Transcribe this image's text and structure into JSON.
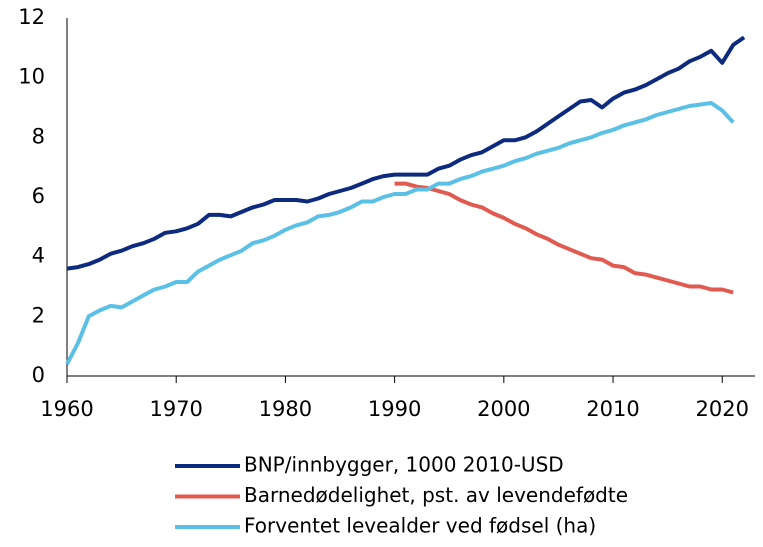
{
  "chart_data": {
    "type": "line",
    "x": [
      1960,
      1961,
      1962,
      1963,
      1964,
      1965,
      1966,
      1967,
      1968,
      1969,
      1970,
      1971,
      1972,
      1973,
      1974,
      1975,
      1976,
      1977,
      1978,
      1979,
      1980,
      1981,
      1982,
      1983,
      1984,
      1985,
      1986,
      1987,
      1988,
      1989,
      1990,
      1991,
      1992,
      1993,
      1994,
      1995,
      1996,
      1997,
      1998,
      1999,
      2000,
      2001,
      2002,
      2003,
      2004,
      2005,
      2006,
      2007,
      2008,
      2009,
      2010,
      2011,
      2012,
      2013,
      2014,
      2015,
      2016,
      2017,
      2018,
      2019,
      2020,
      2021,
      2022
    ],
    "series": [
      {
        "name": "BNP/innbygger, 1000 2010-USD",
        "color": "#0d2b7e",
        "values": [
          3.6,
          3.65,
          3.75,
          3.9,
          4.1,
          4.2,
          4.35,
          4.45,
          4.6,
          4.8,
          4.85,
          4.95,
          5.1,
          5.4,
          5.4,
          5.35,
          5.5,
          5.65,
          5.75,
          5.9,
          5.9,
          5.9,
          5.85,
          5.95,
          6.1,
          6.2,
          6.3,
          6.45,
          6.6,
          6.7,
          6.75,
          6.75,
          6.75,
          6.75,
          6.95,
          7.05,
          7.25,
          7.4,
          7.5,
          7.7,
          7.9,
          7.9,
          8.0,
          8.2,
          8.45,
          8.7,
          8.95,
          9.2,
          9.25,
          9.0,
          9.3,
          9.5,
          9.6,
          9.75,
          9.95,
          10.15,
          10.3,
          10.55,
          10.7,
          10.9,
          10.5,
          11.1,
          11.35
        ]
      },
      {
        "name": "Barnedødelighet, pst. av levendefødte",
        "color": "#e05a50",
        "values": [
          null,
          null,
          null,
          null,
          null,
          null,
          null,
          null,
          null,
          null,
          null,
          null,
          null,
          null,
          null,
          null,
          null,
          null,
          null,
          null,
          null,
          null,
          null,
          null,
          null,
          null,
          null,
          null,
          null,
          null,
          6.45,
          6.45,
          6.35,
          6.3,
          6.2,
          6.1,
          5.9,
          5.75,
          5.65,
          5.45,
          5.3,
          5.1,
          4.95,
          4.75,
          4.6,
          4.4,
          4.25,
          4.1,
          3.95,
          3.9,
          3.7,
          3.65,
          3.45,
          3.4,
          3.3,
          3.2,
          3.1,
          3.0,
          3.0,
          2.9,
          2.9,
          2.8,
          null
        ]
      },
      {
        "name": "Forventet levealder ved fødsel (ha)",
        "color": "#5bc0e6",
        "values": [
          0.4,
          1.1,
          2.0,
          2.2,
          2.35,
          2.3,
          2.5,
          2.7,
          2.9,
          3.0,
          3.15,
          3.15,
          3.5,
          3.7,
          3.9,
          4.05,
          4.2,
          4.45,
          4.55,
          4.7,
          4.9,
          5.05,
          5.15,
          5.35,
          5.4,
          5.5,
          5.65,
          5.85,
          5.85,
          6.0,
          6.1,
          6.1,
          6.25,
          6.25,
          6.45,
          6.45,
          6.6,
          6.7,
          6.85,
          6.95,
          7.05,
          7.2,
          7.3,
          7.45,
          7.55,
          7.65,
          7.8,
          7.9,
          8.0,
          8.15,
          8.25,
          8.4,
          8.5,
          8.6,
          8.75,
          8.85,
          8.95,
          9.05,
          9.1,
          9.15,
          8.9,
          8.5,
          null
        ]
      }
    ],
    "xlim": [
      1960,
      2023
    ],
    "xticks": [
      1960,
      1970,
      1980,
      1990,
      2000,
      2010,
      2020
    ],
    "ylim": [
      0,
      12
    ],
    "yticks": [
      0,
      2,
      4,
      6,
      8,
      10,
      12
    ],
    "grid": false
  }
}
